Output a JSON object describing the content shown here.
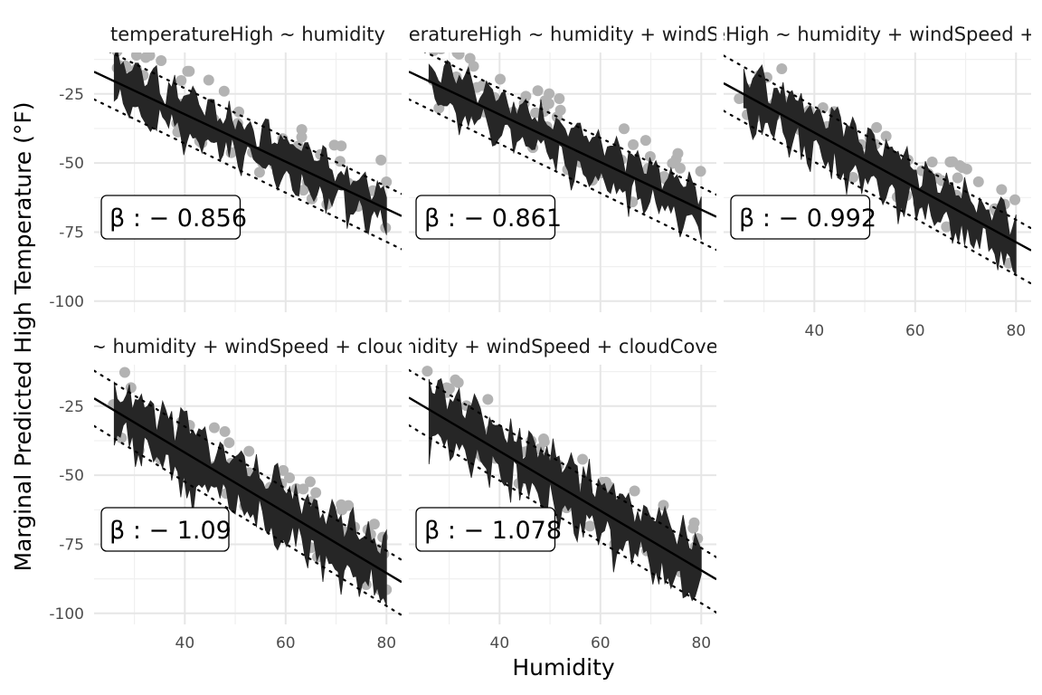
{
  "chart_data": {
    "type": "scatter",
    "xlabel": "Humidity",
    "ylabel": "Marginal Predicted High Temperature (°F)",
    "xlim": [
      22,
      83
    ],
    "ylim": [
      -104,
      -10
    ],
    "x_ticks": [
      40,
      60,
      80
    ],
    "y_ticks": [
      -25,
      -50,
      -75,
      -100
    ],
    "grid": true,
    "colors": {
      "points": "#b3b3b3",
      "ribbon": "#262626",
      "fit_line": "#000000",
      "grid": "#e6e6e6"
    },
    "panels": [
      {
        "title": "temperatureHigh ~ humidity",
        "beta_label": "β : − 0.856",
        "slope": -0.856,
        "intercept": 1.86,
        "band_width": 20,
        "show_x_ticks": false,
        "show_y_ticks": true
      },
      {
        "title": "temperatureHigh ~ humidity + windSpeed",
        "beta_label": "β : − 0.861",
        "slope": -0.861,
        "intercept": 2.0,
        "band_width": 20,
        "show_x_ticks": false,
        "show_y_ticks": false
      },
      {
        "title": "temperatureHigh ~ humidity + windSpeed + cloudCover",
        "beta_label": "β : − 0.992",
        "slope": -0.992,
        "intercept": 0.7,
        "band_width": 25,
        "show_x_ticks": true,
        "show_y_ticks": false
      },
      {
        "title": "temperatureHigh ~ humidity + windSpeed + cloudCover + pressure",
        "beta_label": "β : − 1.09",
        "slope": -1.09,
        "intercept": 1.8,
        "band_width": 28,
        "show_x_ticks": true,
        "show_y_ticks": true
      },
      {
        "title": "temperatureHigh ~ humidity + windSpeed + cloudCover + pressure + visibility",
        "beta_label": "β : − 1.078",
        "slope": -1.078,
        "intercept": 1.8,
        "band_width": 28,
        "show_x_ticks": true,
        "show_y_ticks": false
      }
    ]
  }
}
